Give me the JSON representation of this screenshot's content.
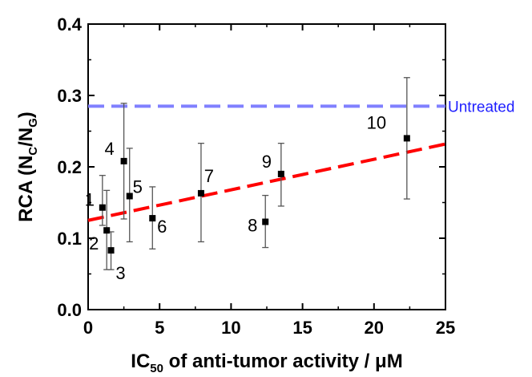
{
  "chart_data": {
    "type": "scatter",
    "xlabel": {
      "prefix": "IC",
      "sub": "50",
      "rest": " of anti-tumor activity / μM"
    },
    "ylabel": {
      "prefix": "RCA (N",
      "sub1": "C",
      "mid": "/N",
      "sub2": "G",
      "suffix": ")"
    },
    "xlim": [
      0,
      25
    ],
    "ylim": [
      0.0,
      0.4
    ],
    "x_ticks": [
      "0",
      "5",
      "10",
      "15",
      "20",
      "25"
    ],
    "y_ticks": [
      "0.0",
      "0.1",
      "0.2",
      "0.3",
      "0.4"
    ],
    "grid": false,
    "points": [
      {
        "label": "1",
        "x": 1.0,
        "y": 0.143,
        "yerr_low": 0.118,
        "yerr_high": 0.188
      },
      {
        "label": "2",
        "x": 1.3,
        "y": 0.111,
        "yerr_low": 0.056,
        "yerr_high": 0.167
      },
      {
        "label": "3",
        "x": 1.6,
        "y": 0.083,
        "yerr_low": 0.056,
        "yerr_high": 0.109
      },
      {
        "label": "4",
        "x": 2.5,
        "y": 0.208,
        "yerr_low": 0.127,
        "yerr_high": 0.289
      },
      {
        "label": "5",
        "x": 2.9,
        "y": 0.159,
        "yerr_low": 0.095,
        "yerr_high": 0.226
      },
      {
        "label": "6",
        "x": 4.5,
        "y": 0.128,
        "yerr_low": 0.085,
        "yerr_high": 0.172
      },
      {
        "label": "7",
        "x": 7.9,
        "y": 0.163,
        "yerr_low": 0.095,
        "yerr_high": 0.233
      },
      {
        "label": "8",
        "x": 12.4,
        "y": 0.123,
        "yerr_low": 0.087,
        "yerr_high": 0.16
      },
      {
        "label": "9",
        "x": 13.5,
        "y": 0.19,
        "yerr_low": 0.145,
        "yerr_high": 0.233
      },
      {
        "label": "10",
        "x": 22.3,
        "y": 0.24,
        "yerr_low": 0.155,
        "yerr_high": 0.325
      }
    ],
    "fit_line": {
      "x": [
        0,
        25
      ],
      "y": [
        0.125,
        0.232
      ],
      "color": "#ff0000",
      "style": "dashed"
    },
    "reference_line": {
      "label": "Untreated",
      "y": 0.285,
      "color": "#8080ff",
      "style": "dashed"
    },
    "marker_color": "#000000"
  }
}
